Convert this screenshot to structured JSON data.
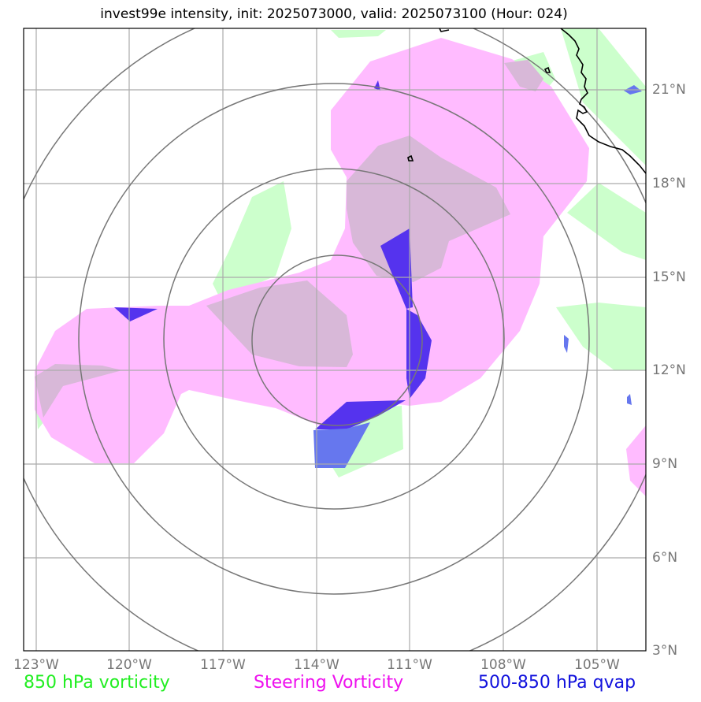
{
  "title": "invest99e intensity, init: 2025073000, valid: 2025073100 (Hour: 024)",
  "lat_labels": [
    "21°N",
    "18°N",
    "15°N",
    "12°N",
    "9°N",
    "6°N",
    "3°N"
  ],
  "lon_labels": [
    "123°W",
    "120°W",
    "117°W",
    "114°W",
    "111°W",
    "108°W",
    "105°W"
  ],
  "legend": {
    "vorticity_850": {
      "label": "850 hPa vorticity",
      "color": "#22ee22"
    },
    "steering": {
      "label": "Steering Vorticity",
      "color": "#ee11ee"
    },
    "qvap": {
      "label": "500-850 hPa qvap",
      "color": "#1111dd"
    }
  },
  "colors": {
    "vort850_fill": "#ccffcc",
    "steering_fill": "#ffaaff",
    "overlap_fill": "#d8b8d8",
    "qvap_fill": "#5522ee",
    "qvap_light": "#6666ee",
    "grid": "#aaaaaa",
    "range_rings": "#777777",
    "coastline": "#000000"
  }
}
